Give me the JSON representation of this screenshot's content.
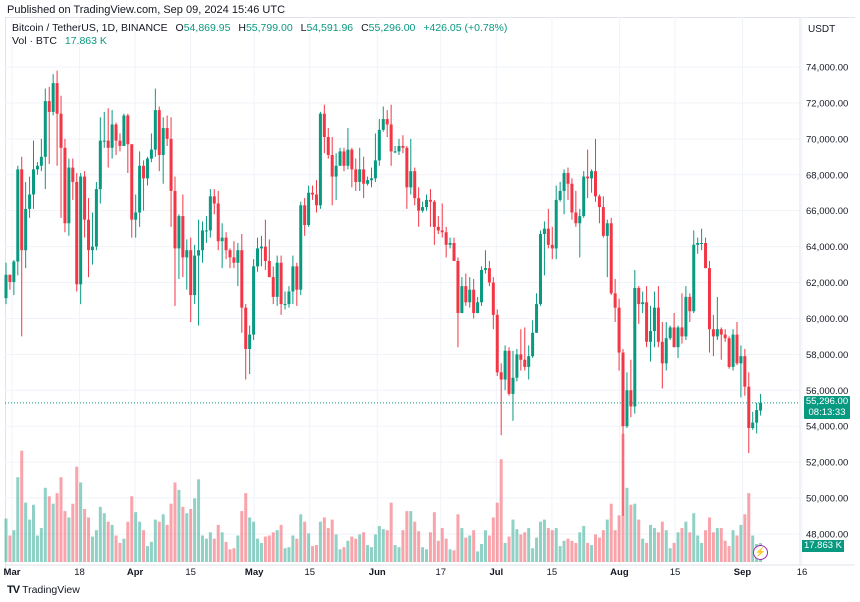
{
  "published": "Published on TradingView.com, Sep 09, 2024 15:46 UTC",
  "legend": {
    "symbol": "Bitcoin / TetherUS, 1D, BINANCE",
    "o_label": "O",
    "o": "54,869.95",
    "h_label": "H",
    "h": "55,799.00",
    "l_label": "L",
    "l": "54,591.96",
    "c_label": "C",
    "c": "55,296.00",
    "change": "+426.05 (+0.78%)",
    "vol_label": "Vol · BTC",
    "vol": "17.863 K"
  },
  "currency": "USDT",
  "current_price": {
    "price": "55,296.00",
    "countdown": "08:13:33"
  },
  "current_volume": "17.863 K",
  "footer_logo": "TradingView",
  "colors": {
    "up": "#089981",
    "down": "#f23645",
    "grid": "#f0f3fa",
    "price_line": "#089981",
    "bolt": "#9c27b0"
  },
  "icons": {
    "bolt": "lightning-icon",
    "logo": "tradingview-logo-icon"
  },
  "chart_data": {
    "type": "candlestick",
    "interval": "1D",
    "start_date": "2024-03-01",
    "end_date": "2024-09-09",
    "ylim": [
      46500,
      75000
    ],
    "y_ticks": [
      "74,000.00",
      "72,000.00",
      "70,000.00",
      "68,000.00",
      "66,000.00",
      "64,000.00",
      "62,000.00",
      "60,000.00",
      "58,000.00",
      "56,000.00",
      "54,000.00",
      "52,000.00",
      "50,000.00",
      "48,000.00"
    ],
    "y_tick_values": [
      74000,
      72000,
      70000,
      68000,
      66000,
      64000,
      62000,
      60000,
      58000,
      56000,
      54000,
      52000,
      50000,
      48000
    ],
    "x_ticks": [
      {
        "label": "Mar",
        "date": "2024-03-01",
        "bold": true
      },
      {
        "label": "18",
        "date": "2024-03-18",
        "bold": false
      },
      {
        "label": "Apr",
        "date": "2024-04-01",
        "bold": true
      },
      {
        "label": "15",
        "date": "2024-04-15",
        "bold": false
      },
      {
        "label": "May",
        "date": "2024-05-01",
        "bold": true
      },
      {
        "label": "15",
        "date": "2024-05-15",
        "bold": false
      },
      {
        "label": "Jun",
        "date": "2024-06-01",
        "bold": true
      },
      {
        "label": "17",
        "date": "2024-06-17",
        "bold": false
      },
      {
        "label": "Jul",
        "date": "2024-07-01",
        "bold": true
      },
      {
        "label": "15",
        "date": "2024-07-15",
        "bold": false
      },
      {
        "label": "Aug",
        "date": "2024-08-01",
        "bold": true
      },
      {
        "label": "15",
        "date": "2024-08-15",
        "bold": false
      },
      {
        "label": "Sep",
        "date": "2024-09-01",
        "bold": true
      },
      {
        "label": "16",
        "date": "2024-09-16",
        "bold": false
      }
    ],
    "last_price": 55296,
    "candles_ohlc": [
      [
        61130,
        63100,
        60800,
        62430
      ],
      [
        62430,
        62450,
        61600,
        62030
      ],
      [
        62030,
        63250,
        61300,
        63170
      ],
      [
        63170,
        68500,
        62400,
        68300
      ],
      [
        68300,
        69000,
        59000,
        63800
      ],
      [
        63800,
        67600,
        62800,
        66100
      ],
      [
        66100,
        67900,
        65600,
        66900
      ],
      [
        66900,
        69900,
        66100,
        68300
      ],
      [
        68300,
        68700,
        68000,
        68500
      ],
      [
        68500,
        70000,
        68200,
        69000
      ],
      [
        69000,
        72800,
        67200,
        72100
      ],
      [
        72100,
        72900,
        68600,
        71500
      ],
      [
        71500,
        73600,
        71300,
        73100
      ],
      [
        73100,
        73800,
        68500,
        71400
      ],
      [
        71400,
        72400,
        65600,
        69500
      ],
      [
        69500,
        70000,
        64800,
        65300
      ],
      [
        65300,
        68900,
        64600,
        68400
      ],
      [
        68400,
        68900,
        66600,
        67600
      ],
      [
        67600,
        68100,
        61500,
        61900
      ],
      [
        61900,
        68100,
        60800,
        67900
      ],
      [
        67900,
        68200,
        64500,
        65500
      ],
      [
        65500,
        66700,
        62300,
        63800
      ],
      [
        63800,
        65900,
        63000,
        64000
      ],
      [
        64000,
        67600,
        63800,
        67200
      ],
      [
        67200,
        71200,
        66400,
        69900
      ],
      [
        69900,
        71500,
        69500,
        69900
      ],
      [
        69900,
        71700,
        68400,
        69500
      ],
      [
        69500,
        71600,
        68900,
        70800
      ],
      [
        70800,
        70900,
        69100,
        69900
      ],
      [
        69900,
        70300,
        69300,
        69600
      ],
      [
        69600,
        71400,
        69600,
        71300
      ],
      [
        71300,
        71400,
        68100,
        69700
      ],
      [
        69700,
        69700,
        64500,
        65500
      ],
      [
        65500,
        66900,
        64500,
        65900
      ],
      [
        65900,
        69300,
        65100,
        68500
      ],
      [
        68500,
        68800,
        66000,
        67800
      ],
      [
        67800,
        69000,
        67400,
        68900
      ],
      [
        68900,
        70300,
        68700,
        69400
      ],
      [
        69400,
        72800,
        69000,
        71600
      ],
      [
        71600,
        71800,
        68200,
        69100
      ],
      [
        69100,
        71200,
        67500,
        70600
      ],
      [
        70600,
        71300,
        69600,
        70000
      ],
      [
        70000,
        71200,
        65100,
        67100
      ],
      [
        67100,
        67900,
        60700,
        63900
      ],
      [
        63900,
        65800,
        62200,
        65700
      ],
      [
        65700,
        66900,
        62300,
        63400
      ],
      [
        63400,
        64400,
        61600,
        63800
      ],
      [
        63800,
        64500,
        59800,
        61300
      ],
      [
        61300,
        64100,
        60800,
        63500
      ],
      [
        63500,
        65500,
        59600,
        63800
      ],
      [
        63800,
        65400,
        63100,
        64900
      ],
      [
        64900,
        65700,
        64200,
        64900
      ],
      [
        64900,
        67200,
        64500,
        66800
      ],
      [
        66800,
        67200,
        65800,
        66400
      ],
      [
        66400,
        67100,
        63800,
        64300
      ],
      [
        64300,
        65300,
        62800,
        64500
      ],
      [
        64500,
        64800,
        63300,
        63800
      ],
      [
        63800,
        63900,
        62800,
        63400
      ],
      [
        63400,
        64300,
        62800,
        63100
      ],
      [
        63100,
        64200,
        61800,
        63800
      ],
      [
        63800,
        64700,
        59200,
        60600
      ],
      [
        60600,
        60800,
        56600,
        58300
      ],
      [
        58300,
        59600,
        56900,
        59100
      ],
      [
        59100,
        63300,
        58800,
        62900
      ],
      [
        62900,
        64500,
        62600,
        63900
      ],
      [
        63900,
        64600,
        62900,
        64000
      ],
      [
        64000,
        65500,
        62700,
        63200
      ],
      [
        63200,
        64400,
        62300,
        62300
      ],
      [
        62300,
        62900,
        60800,
        61200
      ],
      [
        61200,
        63500,
        60700,
        63100
      ],
      [
        63100,
        63500,
        60200,
        60800
      ],
      [
        60800,
        61500,
        60500,
        60800
      ],
      [
        60800,
        61800,
        60600,
        61500
      ],
      [
        61500,
        63500,
        60800,
        62900
      ],
      [
        62900,
        63100,
        60700,
        61600
      ],
      [
        61600,
        66500,
        61300,
        66300
      ],
      [
        66300,
        66700,
        64600,
        65200
      ],
      [
        65200,
        67400,
        65100,
        67000
      ],
      [
        67000,
        67400,
        66600,
        66900
      ],
      [
        66900,
        67700,
        65900,
        66300
      ],
      [
        66300,
        71500,
        66100,
        71400
      ],
      [
        71400,
        71900,
        69200,
        70100
      ],
      [
        70100,
        70600,
        68900,
        69100
      ],
      [
        69100,
        70100,
        66300,
        67900
      ],
      [
        67900,
        69200,
        66600,
        68500
      ],
      [
        68500,
        69500,
        68500,
        69300
      ],
      [
        69300,
        69500,
        68200,
        68500
      ],
      [
        68500,
        70600,
        68300,
        69400
      ],
      [
        69400,
        69500,
        67300,
        68300
      ],
      [
        68300,
        68900,
        67100,
        67600
      ],
      [
        67600,
        69500,
        67100,
        68300
      ],
      [
        68300,
        69000,
        66700,
        67500
      ],
      [
        67500,
        67900,
        67400,
        67700
      ],
      [
        67700,
        68400,
        67300,
        67800
      ],
      [
        67800,
        70300,
        67600,
        68800
      ],
      [
        68800,
        71100,
        68500,
        70500
      ],
      [
        70500,
        71800,
        70400,
        71100
      ],
      [
        71100,
        71600,
        70100,
        70800
      ],
      [
        70800,
        71900,
        68500,
        69300
      ],
      [
        69300,
        69600,
        69200,
        69300
      ],
      [
        69300,
        70000,
        69100,
        69600
      ],
      [
        69600,
        70200,
        69200,
        69500
      ],
      [
        69500,
        69600,
        66100,
        67300
      ],
      [
        67300,
        70000,
        66900,
        68200
      ],
      [
        68200,
        68400,
        66300,
        66700
      ],
      [
        66700,
        67300,
        65100,
        66000
      ],
      [
        66000,
        66500,
        65900,
        66200
      ],
      [
        66200,
        66900,
        66000,
        66600
      ],
      [
        66600,
        67200,
        65100,
        66500
      ],
      [
        66500,
        66600,
        64100,
        65100
      ],
      [
        65100,
        65700,
        64700,
        64900
      ],
      [
        64900,
        66400,
        64500,
        64800
      ],
      [
        64800,
        65100,
        63400,
        64100
      ],
      [
        64100,
        64500,
        63900,
        64200
      ],
      [
        64200,
        64500,
        63200,
        63200
      ],
      [
        63200,
        63400,
        58400,
        60300
      ],
      [
        60300,
        62300,
        60300,
        61800
      ],
      [
        61800,
        62500,
        60700,
        60900
      ],
      [
        60900,
        62300,
        60600,
        61600
      ],
      [
        61600,
        62200,
        60000,
        60300
      ],
      [
        60300,
        61200,
        60300,
        60900
      ],
      [
        60900,
        62900,
        60700,
        62700
      ],
      [
        62700,
        63800,
        62500,
        62800
      ],
      [
        62800,
        63200,
        61800,
        62000
      ],
      [
        62000,
        62300,
        59400,
        60200
      ],
      [
        60200,
        60500,
        56800,
        57000
      ],
      [
        57000,
        57500,
        53500,
        56600
      ],
      [
        56600,
        58500,
        56000,
        58200
      ],
      [
        58200,
        58400,
        55700,
        55800
      ],
      [
        55800,
        58200,
        54300,
        56700
      ],
      [
        56700,
        58300,
        56500,
        58000
      ],
      [
        58000,
        59400,
        57100,
        57700
      ],
      [
        57700,
        59500,
        57100,
        57300
      ],
      [
        57300,
        58500,
        56600,
        57900
      ],
      [
        57900,
        59900,
        57800,
        59200
      ],
      [
        59200,
        61400,
        59200,
        60800
      ],
      [
        60800,
        64900,
        60700,
        64700
      ],
      [
        64700,
        65400,
        62400,
        65000
      ],
      [
        65000,
        66100,
        63900,
        64100
      ],
      [
        64100,
        65100,
        63300,
        63900
      ],
      [
        63900,
        67400,
        63300,
        66600
      ],
      [
        66600,
        67600,
        66500,
        67100
      ],
      [
        67100,
        68300,
        65800,
        68100
      ],
      [
        68100,
        68400,
        66600,
        67500
      ],
      [
        67500,
        67800,
        65500,
        65900
      ],
      [
        65900,
        67100,
        65100,
        65300
      ],
      [
        65300,
        66100,
        63400,
        65700
      ],
      [
        65700,
        68200,
        65600,
        67900
      ],
      [
        67900,
        69400,
        66700,
        67800
      ],
      [
        67800,
        68300,
        67000,
        68200
      ],
      [
        68200,
        70000,
        66500,
        66800
      ],
      [
        66800,
        66900,
        65300,
        66200
      ],
      [
        66200,
        66800,
        64500,
        64600
      ],
      [
        64600,
        65500,
        62300,
        65300
      ],
      [
        65300,
        65600,
        61300,
        61400
      ],
      [
        61400,
        62200,
        59800,
        60600
      ],
      [
        60600,
        61100,
        57100,
        58100
      ],
      [
        58100,
        58300,
        49000,
        54000
      ],
      [
        54000,
        57000,
        53900,
        56000
      ],
      [
        56000,
        57700,
        54500,
        55100
      ],
      [
        55100,
        62700,
        54700,
        61700
      ],
      [
        61700,
        61800,
        59700,
        60800
      ],
      [
        60800,
        61500,
        60300,
        60900
      ],
      [
        60900,
        61800,
        58400,
        58700
      ],
      [
        58700,
        60700,
        57600,
        59300
      ],
      [
        59300,
        61500,
        58400,
        60600
      ],
      [
        60600,
        61800,
        58400,
        58700
      ],
      [
        58700,
        59800,
        56100,
        57500
      ],
      [
        57500,
        59800,
        57100,
        58900
      ],
      [
        58900,
        59600,
        58800,
        59500
      ],
      [
        59500,
        60300,
        58400,
        58400
      ],
      [
        58400,
        59600,
        57800,
        59500
      ],
      [
        59500,
        61400,
        58600,
        59000
      ],
      [
        59000,
        61800,
        58800,
        61200
      ],
      [
        61200,
        61400,
        59800,
        60400
      ],
      [
        60400,
        64900,
        60300,
        64100
      ],
      [
        64100,
        64500,
        63600,
        64200
      ],
      [
        64200,
        65000,
        63800,
        64200
      ],
      [
        64200,
        64500,
        62800,
        62800
      ],
      [
        62800,
        63200,
        58100,
        59400
      ],
      [
        59400,
        60200,
        57900,
        59000
      ],
      [
        59000,
        61200,
        58800,
        59400
      ],
      [
        59400,
        59500,
        57700,
        59100
      ],
      [
        59100,
        59400,
        58700,
        58900
      ],
      [
        58900,
        59000,
        57200,
        57300
      ],
      [
        57300,
        59400,
        57100,
        59100
      ],
      [
        59100,
        59800,
        57400,
        57500
      ],
      [
        57500,
        58500,
        55600,
        57900
      ],
      [
        57900,
        58300,
        55700,
        56200
      ],
      [
        56200,
        57000,
        52500,
        53900
      ],
      [
        53900,
        54800,
        53800,
        54200
      ],
      [
        54200,
        55300,
        53600,
        54900
      ],
      [
        54869.95,
        55799,
        54591.96,
        55296
      ]
    ],
    "volume_unit": "K BTC",
    "volumes": [
      41,
      25,
      30,
      80,
      105,
      56,
      40,
      54,
      25,
      32,
      70,
      62,
      55,
      65,
      80,
      48,
      42,
      55,
      90,
      75,
      50,
      42,
      24,
      30,
      52,
      46,
      38,
      35,
      25,
      18,
      22,
      38,
      62,
      47,
      38,
      30,
      15,
      19,
      40,
      38,
      45,
      35,
      55,
      75,
      68,
      52,
      46,
      50,
      60,
      78,
      25,
      22,
      28,
      22,
      35,
      28,
      19,
      12,
      13,
      25,
      48,
      65,
      42,
      38,
      22,
      18,
      24,
      25,
      28,
      30,
      35,
      13,
      14,
      25,
      22,
      45,
      38,
      27,
      15,
      16,
      38,
      42,
      32,
      40,
      26,
      12,
      14,
      20,
      24,
      22,
      26,
      28,
      16,
      14,
      26,
      34,
      31,
      30,
      56,
      16,
      14,
      30,
      48,
      48,
      38,
      29,
      14,
      12,
      28,
      47,
      20,
      32,
      22,
      12,
      11,
      45,
      32,
      23,
      25,
      30,
      10,
      17,
      30,
      25,
      42,
      56,
      97,
      18,
      24,
      40,
      31,
      26,
      28,
      32,
      13,
      23,
      38,
      40,
      32,
      30,
      32,
      15,
      20,
      22,
      20,
      18,
      28,
      34,
      18,
      16,
      26,
      23,
      30,
      40,
      55,
      30,
      44,
      121,
      70,
      54,
      55,
      40,
      22,
      18,
      35,
      32,
      28,
      38,
      30,
      13,
      18,
      28,
      32,
      38,
      28,
      46,
      25,
      18,
      30,
      42,
      28,
      32,
      32,
      20,
      15,
      30,
      25,
      35,
      45,
      65,
      25,
      17,
      17.863
    ]
  }
}
